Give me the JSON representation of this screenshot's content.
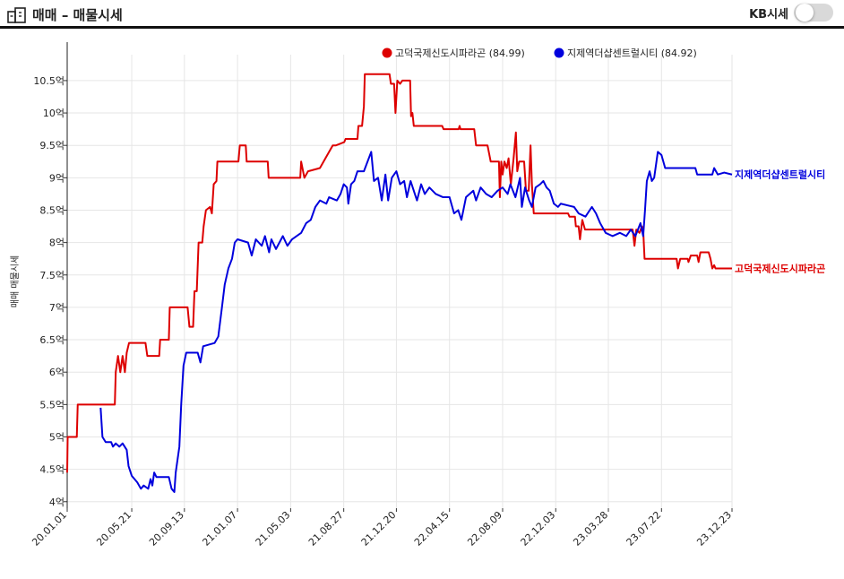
{
  "header": {
    "title": "매매 – 매물시세",
    "toggle_label": "KB시세",
    "toggle_on": false
  },
  "chart_data": {
    "type": "line",
    "title": "",
    "xlabel": "",
    "ylabel": "매매 매물시세",
    "ylim": [
      3.9,
      10.9
    ],
    "yticks": [
      4,
      4.5,
      5,
      5.5,
      6,
      6.5,
      7,
      7.5,
      8,
      8.5,
      9,
      9.5,
      10,
      10.5
    ],
    "ytick_labels": [
      "4억",
      "4.5억",
      "5억",
      "5.5억",
      "6억",
      "6.5억",
      "7억",
      "7.5억",
      "8억",
      "8.5억",
      "9억",
      "9.5억",
      "10억",
      "10.5억"
    ],
    "xlim": [
      "2020-01-01",
      "2023-12-23"
    ],
    "xticks": [
      "2020-01-01",
      "2020-05-21",
      "2020-09-13",
      "2021-01-07",
      "2021-05-03",
      "2021-08-27",
      "2021-12-20",
      "2022-04-15",
      "2022-08-09",
      "2022-12-03",
      "2023-03-28",
      "2023-07-22",
      "2023-12-23"
    ],
    "xtick_labels": [
      "20.01.01",
      "20.05.21",
      "20.09.13",
      "21.01.07",
      "21.05.03",
      "21.08.27",
      "21.12.20",
      "22.04.15",
      "22.08.09",
      "22.12.03",
      "23.03.28",
      "23.07.22",
      "23.12.23"
    ],
    "grid": true,
    "legend_position": "top-right",
    "series": [
      {
        "name": "고덕국제신도시파라곤",
        "legend": "고덕국제신도시파라곤 (84.99)",
        "end_label": "고덕국제신도시파라곤",
        "color": "#dd0000",
        "points": [
          [
            "2020-01-01",
            4.45
          ],
          [
            "2020-01-02",
            5.0
          ],
          [
            "2020-01-22",
            5.0
          ],
          [
            "2020-01-24",
            5.5
          ],
          [
            "2020-04-14",
            5.5
          ],
          [
            "2020-04-16",
            6.0
          ],
          [
            "2020-04-21",
            6.25
          ],
          [
            "2020-04-26",
            6.0
          ],
          [
            "2020-05-01",
            6.25
          ],
          [
            "2020-05-06",
            6.0
          ],
          [
            "2020-05-10",
            6.3
          ],
          [
            "2020-05-15",
            6.45
          ],
          [
            "2020-06-20",
            6.45
          ],
          [
            "2020-06-24",
            6.25
          ],
          [
            "2020-07-20",
            6.25
          ],
          [
            "2020-07-22",
            6.5
          ],
          [
            "2020-08-10",
            6.5
          ],
          [
            "2020-08-12",
            7.0
          ],
          [
            "2020-09-20",
            7.0
          ],
          [
            "2020-09-24",
            6.7
          ],
          [
            "2020-10-02",
            6.7
          ],
          [
            "2020-10-05",
            7.25
          ],
          [
            "2020-10-10",
            7.25
          ],
          [
            "2020-10-14",
            8.0
          ],
          [
            "2020-10-22",
            8.0
          ],
          [
            "2020-10-25",
            8.25
          ],
          [
            "2020-10-30",
            8.5
          ],
          [
            "2020-11-08",
            8.55
          ],
          [
            "2020-11-12",
            8.45
          ],
          [
            "2020-11-16",
            8.9
          ],
          [
            "2020-11-22",
            8.95
          ],
          [
            "2020-11-24",
            9.25
          ],
          [
            "2021-01-09",
            9.25
          ],
          [
            "2021-01-12",
            9.5
          ],
          [
            "2021-01-25",
            9.5
          ],
          [
            "2021-01-27",
            9.25
          ],
          [
            "2021-03-14",
            9.25
          ],
          [
            "2021-03-16",
            9.0
          ],
          [
            "2021-05-24",
            9.0
          ],
          [
            "2021-05-26",
            9.25
          ],
          [
            "2021-06-02",
            9.0
          ],
          [
            "2021-06-10",
            9.1
          ],
          [
            "2021-07-06",
            9.15
          ],
          [
            "2021-07-18",
            9.3
          ],
          [
            "2021-08-03",
            9.5
          ],
          [
            "2021-08-10",
            9.5
          ],
          [
            "2021-08-28",
            9.55
          ],
          [
            "2021-08-31",
            9.6
          ],
          [
            "2021-09-26",
            9.6
          ],
          [
            "2021-09-28",
            9.8
          ],
          [
            "2021-10-06",
            9.8
          ],
          [
            "2021-10-10",
            10.1
          ],
          [
            "2021-10-12",
            10.6
          ],
          [
            "2021-12-05",
            10.6
          ],
          [
            "2021-12-08",
            10.45
          ],
          [
            "2021-12-15",
            10.45
          ],
          [
            "2021-12-18",
            10.0
          ],
          [
            "2021-12-22",
            10.5
          ],
          [
            "2021-12-28",
            10.45
          ],
          [
            "2022-01-02",
            10.5
          ],
          [
            "2022-01-19",
            10.5
          ],
          [
            "2022-01-21",
            9.95
          ],
          [
            "2022-01-24",
            10.0
          ],
          [
            "2022-01-27",
            9.8
          ],
          [
            "2022-03-30",
            9.8
          ],
          [
            "2022-04-02",
            9.75
          ],
          [
            "2022-05-05",
            9.75
          ],
          [
            "2022-05-07",
            9.8
          ],
          [
            "2022-05-09",
            9.75
          ],
          [
            "2022-06-08",
            9.75
          ],
          [
            "2022-06-12",
            9.5
          ],
          [
            "2022-07-07",
            9.5
          ],
          [
            "2022-07-14",
            9.25
          ],
          [
            "2022-08-01",
            9.25
          ],
          [
            "2022-08-03",
            8.7
          ],
          [
            "2022-08-06",
            9.25
          ],
          [
            "2022-08-09",
            9.05
          ],
          [
            "2022-08-13",
            9.25
          ],
          [
            "2022-08-18",
            9.15
          ],
          [
            "2022-08-22",
            9.3
          ],
          [
            "2022-08-27",
            8.9
          ],
          [
            "2022-09-02",
            9.3
          ],
          [
            "2022-09-07",
            9.7
          ],
          [
            "2022-09-10",
            9.1
          ],
          [
            "2022-09-14",
            9.25
          ],
          [
            "2022-09-25",
            9.25
          ],
          [
            "2022-09-29",
            8.8
          ],
          [
            "2022-10-05",
            8.8
          ],
          [
            "2022-10-09",
            9.5
          ],
          [
            "2022-10-12",
            8.9
          ],
          [
            "2022-10-16",
            8.45
          ],
          [
            "2022-12-30",
            8.45
          ],
          [
            "2023-01-02",
            8.4
          ],
          [
            "2023-01-14",
            8.4
          ],
          [
            "2023-01-16",
            8.25
          ],
          [
            "2023-01-22",
            8.25
          ],
          [
            "2023-01-25",
            8.05
          ],
          [
            "2023-01-30",
            8.35
          ],
          [
            "2023-02-05",
            8.2
          ],
          [
            "2023-05-20",
            8.2
          ],
          [
            "2023-05-24",
            7.95
          ],
          [
            "2023-05-28",
            8.2
          ],
          [
            "2023-06-04",
            8.15
          ],
          [
            "2023-06-09",
            8.25
          ],
          [
            "2023-06-12",
            8.2
          ],
          [
            "2023-06-15",
            7.75
          ],
          [
            "2023-08-24",
            7.75
          ],
          [
            "2023-08-27",
            7.6
          ],
          [
            "2023-09-01",
            7.75
          ],
          [
            "2023-09-17",
            7.75
          ],
          [
            "2023-09-19",
            7.7
          ],
          [
            "2023-09-24",
            7.8
          ],
          [
            "2023-10-08",
            7.8
          ],
          [
            "2023-10-11",
            7.7
          ],
          [
            "2023-10-15",
            7.85
          ],
          [
            "2023-11-02",
            7.85
          ],
          [
            "2023-11-06",
            7.75
          ],
          [
            "2023-11-10",
            7.6
          ],
          [
            "2023-11-14",
            7.65
          ],
          [
            "2023-11-17",
            7.6
          ],
          [
            "2023-12-23",
            7.6
          ]
        ]
      },
      {
        "name": "지제역더샵센트럴시티",
        "legend": "지제역더샵센트럴시티 (84.92)",
        "end_label": "지제역더샵센트럴시티",
        "color": "#0000dd",
        "points": [
          [
            "2020-03-14",
            5.45
          ],
          [
            "2020-03-18",
            5.0
          ],
          [
            "2020-03-25",
            4.92
          ],
          [
            "2020-04-06",
            4.92
          ],
          [
            "2020-04-10",
            4.85
          ],
          [
            "2020-04-16",
            4.9
          ],
          [
            "2020-04-24",
            4.85
          ],
          [
            "2020-05-01",
            4.9
          ],
          [
            "2020-05-10",
            4.8
          ],
          [
            "2020-05-14",
            4.55
          ],
          [
            "2020-05-21",
            4.4
          ],
          [
            "2020-06-02",
            4.3
          ],
          [
            "2020-06-10",
            4.2
          ],
          [
            "2020-06-16",
            4.25
          ],
          [
            "2020-06-26",
            4.2
          ],
          [
            "2020-07-01",
            4.35
          ],
          [
            "2020-07-05",
            4.25
          ],
          [
            "2020-07-09",
            4.45
          ],
          [
            "2020-07-14",
            4.38
          ],
          [
            "2020-08-10",
            4.38
          ],
          [
            "2020-08-16",
            4.2
          ],
          [
            "2020-08-22",
            4.15
          ],
          [
            "2020-08-25",
            4.45
          ],
          [
            "2020-09-02",
            4.85
          ],
          [
            "2020-09-06",
            5.5
          ],
          [
            "2020-09-11",
            6.1
          ],
          [
            "2020-09-17",
            6.3
          ],
          [
            "2020-10-12",
            6.3
          ],
          [
            "2020-10-18",
            6.15
          ],
          [
            "2020-10-24",
            6.4
          ],
          [
            "2020-11-18",
            6.45
          ],
          [
            "2020-11-26",
            6.55
          ],
          [
            "2020-12-04",
            7.0
          ],
          [
            "2020-12-10",
            7.35
          ],
          [
            "2020-12-18",
            7.6
          ],
          [
            "2020-12-26",
            7.75
          ],
          [
            "2021-01-01",
            8.0
          ],
          [
            "2021-01-07",
            8.05
          ],
          [
            "2021-01-30",
            8.0
          ],
          [
            "2021-02-07",
            7.8
          ],
          [
            "2021-02-16",
            8.05
          ],
          [
            "2021-03-01",
            7.95
          ],
          [
            "2021-03-08",
            8.1
          ],
          [
            "2021-03-17",
            7.85
          ],
          [
            "2021-03-22",
            8.05
          ],
          [
            "2021-04-01",
            7.9
          ],
          [
            "2021-04-16",
            8.1
          ],
          [
            "2021-04-26",
            7.95
          ],
          [
            "2021-05-06",
            8.05
          ],
          [
            "2021-05-26",
            8.15
          ],
          [
            "2021-06-06",
            8.3
          ],
          [
            "2021-06-16",
            8.35
          ],
          [
            "2021-06-26",
            8.55
          ],
          [
            "2021-07-06",
            8.65
          ],
          [
            "2021-07-20",
            8.6
          ],
          [
            "2021-07-26",
            8.7
          ],
          [
            "2021-08-12",
            8.65
          ],
          [
            "2021-08-20",
            8.75
          ],
          [
            "2021-08-27",
            8.9
          ],
          [
            "2021-09-03",
            8.85
          ],
          [
            "2021-09-06",
            8.6
          ],
          [
            "2021-09-12",
            8.9
          ],
          [
            "2021-09-19",
            8.95
          ],
          [
            "2021-09-26",
            9.1
          ],
          [
            "2021-10-10",
            9.1
          ],
          [
            "2021-10-26",
            9.4
          ],
          [
            "2021-11-01",
            8.95
          ],
          [
            "2021-11-10",
            9.0
          ],
          [
            "2021-11-18",
            8.65
          ],
          [
            "2021-11-26",
            9.05
          ],
          [
            "2021-12-02",
            8.65
          ],
          [
            "2021-12-10",
            9.0
          ],
          [
            "2021-12-20",
            9.1
          ],
          [
            "2021-12-28",
            8.9
          ],
          [
            "2022-01-06",
            8.95
          ],
          [
            "2022-01-12",
            8.7
          ],
          [
            "2022-01-20",
            8.95
          ],
          [
            "2022-02-03",
            8.65
          ],
          [
            "2022-02-12",
            8.9
          ],
          [
            "2022-02-20",
            8.75
          ],
          [
            "2022-03-02",
            8.85
          ],
          [
            "2022-03-16",
            8.75
          ],
          [
            "2022-04-01",
            8.7
          ],
          [
            "2022-04-15",
            8.7
          ],
          [
            "2022-04-25",
            8.45
          ],
          [
            "2022-05-04",
            8.5
          ],
          [
            "2022-05-11",
            8.35
          ],
          [
            "2022-05-21",
            8.7
          ],
          [
            "2022-06-06",
            8.8
          ],
          [
            "2022-06-12",
            8.65
          ],
          [
            "2022-06-22",
            8.85
          ],
          [
            "2022-07-04",
            8.75
          ],
          [
            "2022-07-16",
            8.7
          ],
          [
            "2022-07-29",
            8.8
          ],
          [
            "2022-08-09",
            8.85
          ],
          [
            "2022-08-20",
            8.75
          ],
          [
            "2022-08-26",
            8.9
          ],
          [
            "2022-09-06",
            8.7
          ],
          [
            "2022-09-16",
            9.0
          ],
          [
            "2022-09-20",
            8.55
          ],
          [
            "2022-09-27",
            8.85
          ],
          [
            "2022-10-06",
            8.65
          ],
          [
            "2022-10-12",
            8.55
          ],
          [
            "2022-10-20",
            8.85
          ],
          [
            "2022-10-30",
            8.9
          ],
          [
            "2022-11-06",
            8.95
          ],
          [
            "2022-11-13",
            8.85
          ],
          [
            "2022-11-20",
            8.8
          ],
          [
            "2022-11-29",
            8.6
          ],
          [
            "2022-12-08",
            8.55
          ],
          [
            "2022-12-14",
            8.6
          ],
          [
            "2023-01-12",
            8.55
          ],
          [
            "2023-01-22",
            8.45
          ],
          [
            "2023-02-06",
            8.4
          ],
          [
            "2023-02-20",
            8.55
          ],
          [
            "2023-03-01",
            8.45
          ],
          [
            "2023-03-10",
            8.3
          ],
          [
            "2023-03-22",
            8.15
          ],
          [
            "2023-04-06",
            8.1
          ],
          [
            "2023-04-22",
            8.15
          ],
          [
            "2023-05-06",
            8.1
          ],
          [
            "2023-05-16",
            8.2
          ],
          [
            "2023-05-26",
            8.1
          ],
          [
            "2023-06-06",
            8.3
          ],
          [
            "2023-06-12",
            8.1
          ],
          [
            "2023-06-16",
            8.5
          ],
          [
            "2023-06-20",
            8.95
          ],
          [
            "2023-06-26",
            9.1
          ],
          [
            "2023-07-01",
            8.95
          ],
          [
            "2023-07-06",
            9.0
          ],
          [
            "2023-07-14",
            9.4
          ],
          [
            "2023-07-22",
            9.35
          ],
          [
            "2023-07-30",
            9.15
          ],
          [
            "2023-10-04",
            9.15
          ],
          [
            "2023-10-08",
            9.05
          ],
          [
            "2023-11-10",
            9.05
          ],
          [
            "2023-11-14",
            9.15
          ],
          [
            "2023-11-22",
            9.05
          ],
          [
            "2023-12-06",
            9.08
          ],
          [
            "2023-12-23",
            9.05
          ]
        ]
      }
    ]
  }
}
